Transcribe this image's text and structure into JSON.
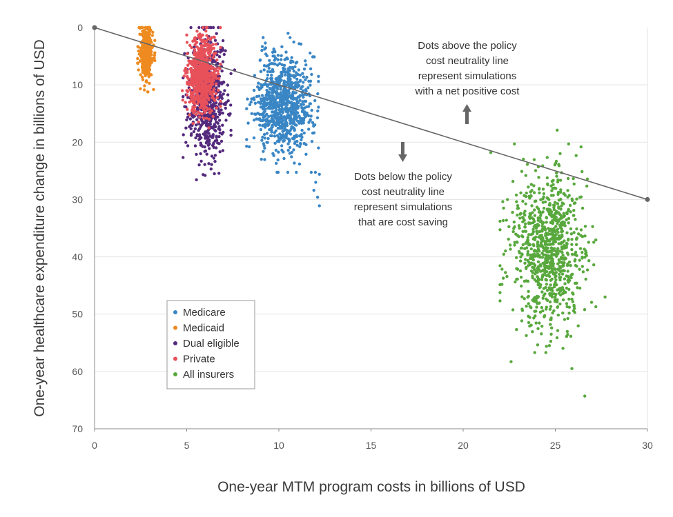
{
  "chart_data": {
    "type": "scatter",
    "xlabel": "One-year MTM program costs in billions of USD",
    "ylabel": "One-year healthcare expenditure change in billions of USD",
    "xlim": [
      0,
      30
    ],
    "ylim": [
      0,
      70
    ],
    "y_inverted": true,
    "grid": "horizontal",
    "x_ticks": [
      "0",
      "5",
      "10",
      "15",
      "20",
      "25",
      "30"
    ],
    "y_ticks": [
      "0",
      "10",
      "20",
      "30",
      "40",
      "50",
      "60",
      "70"
    ],
    "legend_position": "lower-left",
    "series": [
      {
        "name": "Medicare",
        "color": "#3a86c5",
        "cloud": {
          "n": 850,
          "x_mean": 10.2,
          "x_sd": 0.75,
          "y_mean": 13.5,
          "y_sd": 4.2,
          "seed": 11
        },
        "outliers": [
          [
            12.2,
            25.6
          ],
          [
            12.0,
            27.0
          ],
          [
            11.9,
            28.4
          ],
          [
            12.1,
            29.6
          ],
          [
            12.2,
            31.1
          ],
          [
            10.5,
            1.0
          ]
        ]
      },
      {
        "name": "Medicaid",
        "color": "#ee8a1f",
        "cloud": {
          "n": 320,
          "x_mean": 2.8,
          "x_sd": 0.18,
          "y_mean": 4.5,
          "y_sd": 2.4,
          "seed": 22
        },
        "outliers": [
          [
            3.2,
            10.8
          ],
          [
            2.7,
            0.5
          ]
        ]
      },
      {
        "name": "Dual eligible",
        "color": "#542a7d",
        "cloud": {
          "n": 650,
          "x_mean": 6.1,
          "x_sd": 0.5,
          "y_mean": 12.0,
          "y_sd": 5.2,
          "seed": 33
        },
        "outliers": [
          [
            6.5,
            25.5
          ],
          [
            6.0,
            25.8
          ],
          [
            7.6,
            7.4
          ]
        ]
      },
      {
        "name": "Private",
        "color": "#e8515a",
        "cloud": {
          "n": 650,
          "x_mean": 5.8,
          "x_sd": 0.4,
          "y_mean": 8.0,
          "y_sd": 3.2,
          "seed": 44
        },
        "outliers": [
          [
            5.0,
            1.3
          ],
          [
            6.2,
            17.5
          ]
        ]
      },
      {
        "name": "All insurers",
        "color": "#58a83d",
        "cloud": {
          "n": 900,
          "x_mean": 24.6,
          "x_sd": 1.0,
          "y_mean": 38.5,
          "y_sd": 6.5,
          "seed": 55
        },
        "outliers": [
          [
            26.6,
            64.3
          ],
          [
            21.5,
            21.8
          ],
          [
            25.1,
            17.9
          ],
          [
            27.7,
            47.0
          ],
          [
            22.6,
            58.3
          ],
          [
            25.9,
            59.5
          ]
        ]
      }
    ],
    "reference_line": {
      "points": [
        [
          0,
          0
        ],
        [
          30,
          30
        ]
      ]
    },
    "annotations": {
      "above": [
        "Dots above the policy",
        "cost neutrality line",
        "represent simulations",
        "with a net positive cost"
      ],
      "below": [
        "Dots below the policy",
        "cost neutrality line",
        "represent simulations",
        "that are cost saving"
      ]
    }
  }
}
